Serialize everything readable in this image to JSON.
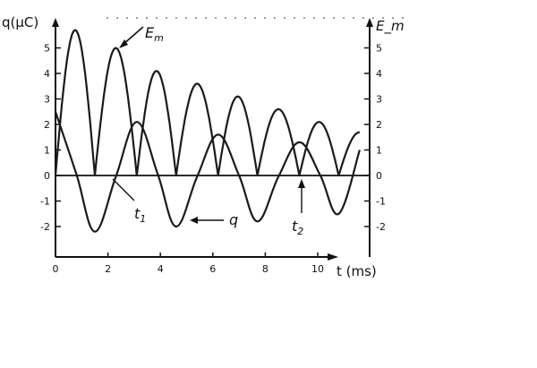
{
  "chart_data": {
    "type": "line",
    "x_label": "t (ms)",
    "y_left_label": "q(μC)",
    "y_right_label": "E_m",
    "x_ticks": [
      0,
      2,
      4,
      6,
      8,
      10
    ],
    "x_tick_labels": [
      "0",
      "2",
      "4",
      "6",
      "8",
      "10"
    ],
    "y_ticks": [
      -2,
      -1,
      0,
      1,
      2,
      3,
      4,
      5
    ],
    "y_left_tick_labels": [
      "-2",
      "-1",
      "0",
      "1",
      "2",
      "3",
      "4",
      "5"
    ],
    "y_right_tick_labels": [
      "-2",
      "-1",
      "0",
      "1",
      "2",
      "3",
      "4",
      "5"
    ],
    "xlim": [
      0,
      11.8
    ],
    "ylim": [
      -3,
      6
    ],
    "grid": false,
    "series": [
      {
        "name": "q",
        "kind": "damped cosine",
        "x": [
          0,
          0.8,
          1.5,
          2.3,
          3.1,
          3.9,
          4.6,
          5.4,
          6.2,
          7.0,
          7.7,
          8.5,
          9.3,
          10.1,
          10.8,
          11.6
        ],
        "y": [
          2.5,
          0.05,
          -2.2,
          -0.05,
          2.1,
          0.05,
          -2.0,
          -0.05,
          1.6,
          0.0,
          -1.8,
          -0.05,
          1.3,
          0.0,
          -1.5,
          1.0
        ]
      },
      {
        "name": "E_m",
        "kind": "rectified damped sine",
        "x": [
          0,
          0.8,
          1.5,
          2.3,
          3.1,
          3.9,
          4.6,
          5.4,
          6.2,
          7.0,
          7.7,
          8.5,
          9.3,
          10.1,
          10.8,
          11.6
        ],
        "y": [
          0,
          5.7,
          0,
          5.0,
          0,
          4.1,
          0,
          3.6,
          0,
          3.1,
          0,
          2.6,
          0,
          2.1,
          0,
          1.7
        ]
      }
    ],
    "annotations": [
      {
        "text": "E",
        "subscript": "m",
        "target_series": "E_m"
      },
      {
        "text": "t",
        "subscript": "1",
        "target_x": 1.7
      },
      {
        "text": "q",
        "target_series": "q"
      },
      {
        "text": "t",
        "subscript": "2",
        "target_x": 9.4
      }
    ]
  }
}
